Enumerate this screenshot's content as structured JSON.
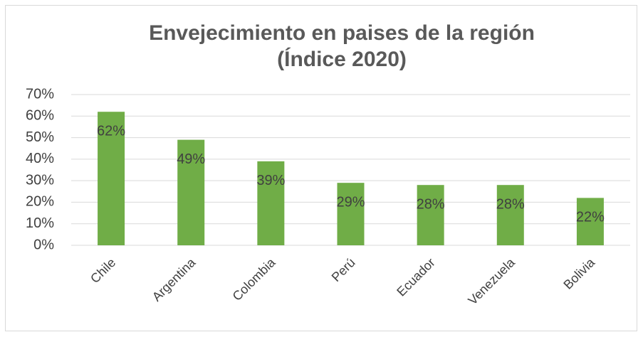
{
  "chart_data": {
    "type": "bar",
    "title": "Envejecimiento en paises de la región (Índice 2020)",
    "categories": [
      "Chile",
      "Argentina",
      "Colombia",
      "Perú",
      "Ecuador",
      "Venezuela",
      "Bolivia"
    ],
    "values": [
      62,
      49,
      39,
      29,
      28,
      28,
      22
    ],
    "value_labels": [
      "62%",
      "49%",
      "39%",
      "29%",
      "28%",
      "28%",
      "22%"
    ],
    "color": "#70ad47",
    "ylim": [
      0,
      70
    ],
    "yticks": [
      {
        "value": 0,
        "label": "0%"
      },
      {
        "value": 10,
        "label": "10%"
      },
      {
        "value": 20,
        "label": "20%"
      },
      {
        "value": 30,
        "label": "30%"
      },
      {
        "value": 40,
        "label": "40%"
      },
      {
        "value": 50,
        "label": "50%"
      },
      {
        "value": 60,
        "label": "60%"
      },
      {
        "value": 70,
        "label": "70%"
      }
    ],
    "grid": true
  }
}
